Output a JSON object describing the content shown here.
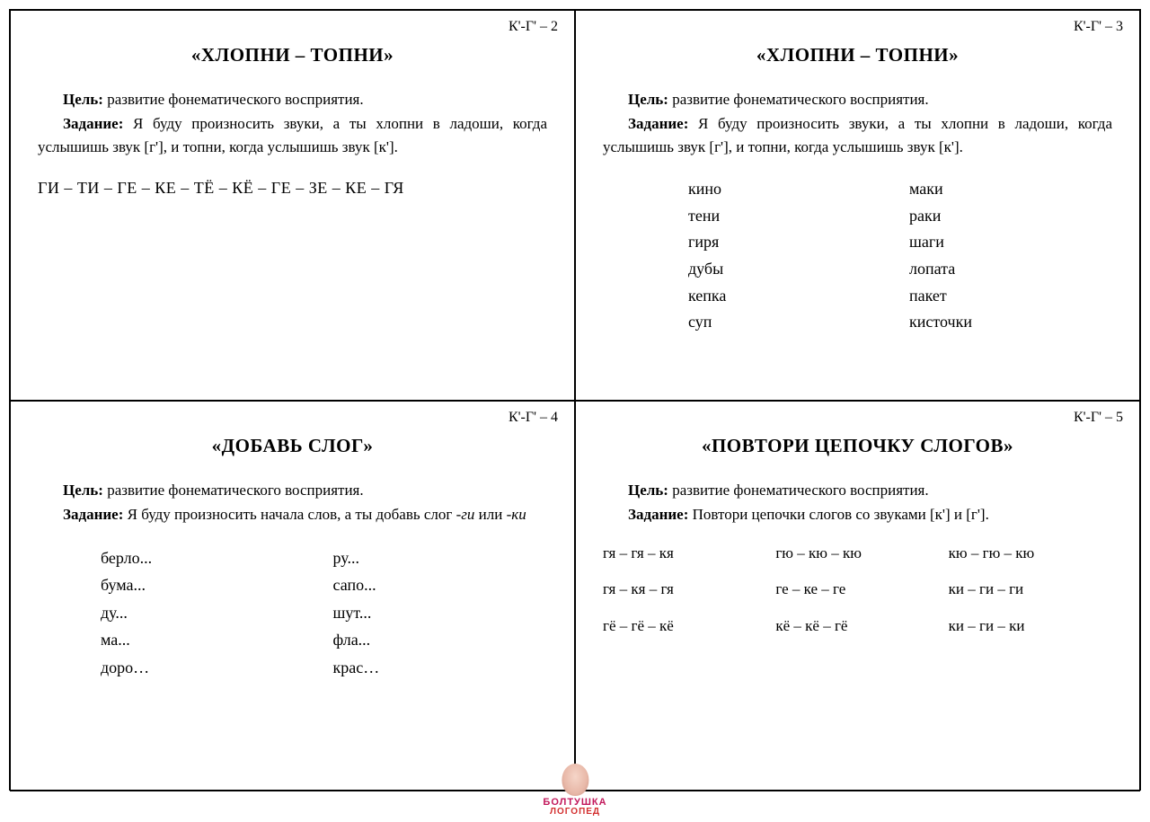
{
  "cards": [
    {
      "label": "К'-Г' – 2",
      "title": "«ХЛОПНИ – ТОПНИ»",
      "goal_label": "Цель:",
      "goal_text": " развитие фонематического восприятия.",
      "task_label": "Задание:",
      "task_text": " Я буду произносить звуки, а ты хлопни в ладоши, когда услышишь звук [г'], и топни, когда услышишь звук [к'].",
      "content_type": "line",
      "line": "ГИ – ТИ – ГЕ – КЕ – ТЁ – КЁ – ГЕ – ЗЕ – КЕ – ГЯ"
    },
    {
      "label": "К'-Г' – 3",
      "title": "«ХЛОПНИ – ТОПНИ»",
      "goal_label": "Цель:",
      "goal_text": " развитие фонематического восприятия.",
      "task_label": "Задание:",
      "task_text": " Я буду произносить звуки, а ты хлопни в ладоши, когда услышишь звук [г'], и топни, когда услышишь звук [к'].",
      "content_type": "two-col",
      "col1": [
        "кино",
        "тени",
        "гиря",
        "дубы",
        "кепка",
        "суп"
      ],
      "col2": [
        "маки",
        "раки",
        "шаги",
        "лопата",
        "пакет",
        "кисточки"
      ]
    },
    {
      "label": "К'-Г' – 4",
      "title": "«ДОБАВЬ СЛОГ»",
      "goal_label": "Цель:",
      "goal_text": " развитие фонематического восприятия.",
      "task_label": "Задание:",
      "task_text_pre": " Я буду произносить начала слов, а ты добавь слог ",
      "task_italic1": "-ги",
      "task_mid": " или ",
      "task_italic2": "-ки",
      "content_type": "two-col-narrow",
      "col1": [
        "берло...",
        "бума...",
        "ду...",
        "ма...",
        "доро…"
      ],
      "col2": [
        "ру...",
        "сапо...",
        "шут...",
        "фла...",
        "крас…"
      ]
    },
    {
      "label": "К'-Г' – 5",
      "title": "«ПОВТОРИ ЦЕПОЧКУ СЛОГОВ»",
      "goal_label": "Цель:",
      "goal_text": " развитие фонематического восприятия.",
      "task_label": "Задание:",
      "task_text": " Повтори цепочки слогов со звуками [к'] и [г'].",
      "content_type": "three-col",
      "col1": [
        "гя – гя – кя",
        "гя – кя – гя",
        "гё – гё – кё"
      ],
      "col2": [
        "гю – кю – кю",
        "ге – ке – ге",
        "кё – кё – гё"
      ],
      "col3": [
        "кю – гю – кю",
        "ки – ги – ги",
        "ки – ги – ки"
      ]
    }
  ],
  "logo": {
    "line1": "БОЛТУШКА",
    "line2": "ЛОГОПЕД"
  }
}
